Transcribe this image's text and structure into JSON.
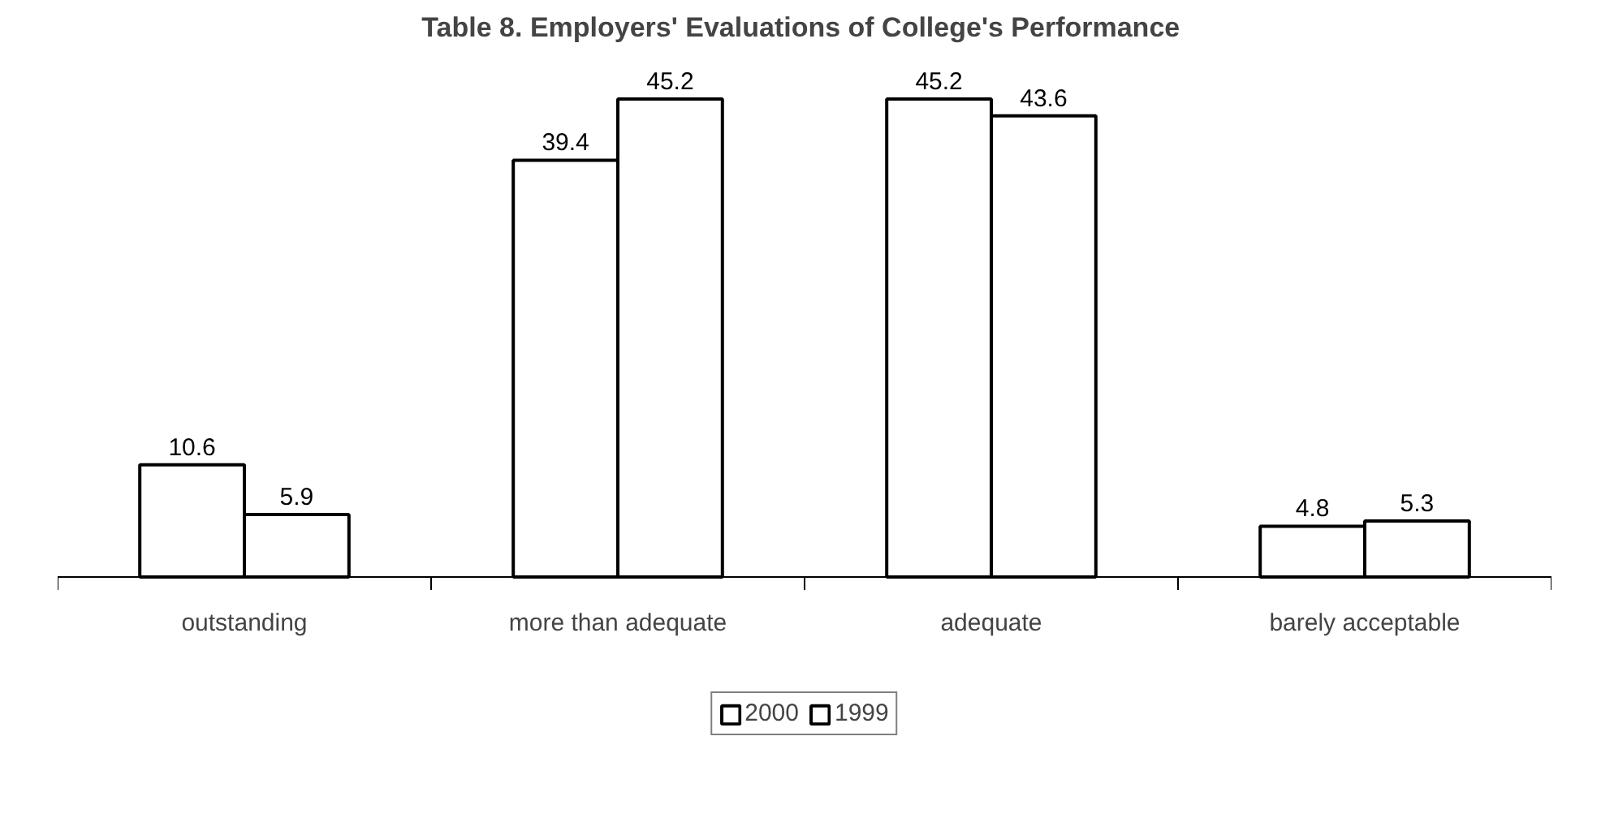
{
  "chart_data": {
    "type": "bar",
    "title": "Table 8.  Employers' Evaluations of College's Performance",
    "categories": [
      "outstanding",
      "more than adequate",
      "adequate",
      "barely acceptable"
    ],
    "series": [
      {
        "name": "2000",
        "color": "#ffffff",
        "values": [
          10.6,
          39.4,
          45.2,
          4.8
        ]
      },
      {
        "name": "1999",
        "color": "#ffffff",
        "values": [
          5.9,
          45.2,
          43.6,
          5.3
        ]
      }
    ],
    "data_labels": true,
    "grid": false,
    "legend": "bottom"
  }
}
